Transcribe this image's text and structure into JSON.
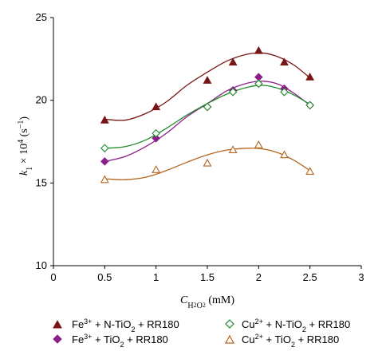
{
  "chart_data": {
    "type": "scatter",
    "xlabel": "C_H2O2 (mM)",
    "ylabel": "k1 × 10^4 (s^-1)",
    "xlim": [
      0,
      3
    ],
    "ylim": [
      10,
      25
    ],
    "x_ticks": [
      "0",
      "0.5",
      "1",
      "1.5",
      "2",
      "2.5",
      "3"
    ],
    "y_ticks": [
      "10",
      "15",
      "20",
      "25"
    ],
    "grid": false,
    "legend_position": "bottom",
    "series": [
      {
        "name": "Fe3+ + N-TiO2 + RR180",
        "marker": "filled-triangle",
        "color": "#7a1515",
        "x": [
          0.5,
          1.0,
          1.5,
          1.75,
          2.0,
          2.25,
          2.5
        ],
        "y": [
          18.8,
          19.6,
          21.2,
          22.3,
          23.0,
          22.3,
          21.4
        ],
        "fit_x": [
          0.5,
          0.7,
          0.9,
          1.1,
          1.3,
          1.5,
          1.7,
          1.9,
          2.05,
          2.2,
          2.35,
          2.5
        ],
        "fit_y": [
          18.85,
          18.8,
          19.2,
          19.9,
          20.9,
          21.7,
          22.4,
          22.8,
          22.85,
          22.6,
          22.1,
          21.35
        ]
      },
      {
        "name": "Fe3+ + TiO2 + RR180",
        "marker": "filled-diamond",
        "color": "#8b1e8b",
        "x": [
          0.5,
          1.0,
          1.5,
          1.75,
          2.0,
          2.25,
          2.5
        ],
        "y": [
          16.3,
          17.7,
          19.6,
          20.6,
          21.4,
          20.7,
          19.7
        ],
        "fit_x": [
          0.5,
          0.7,
          0.9,
          1.1,
          1.3,
          1.5,
          1.7,
          1.9,
          2.05,
          2.2,
          2.35,
          2.5
        ],
        "fit_y": [
          16.3,
          16.6,
          17.2,
          18.0,
          19.0,
          19.8,
          20.6,
          21.05,
          21.15,
          20.95,
          20.4,
          19.7
        ]
      },
      {
        "name": "Cu2+ + N-TiO2 + RR180",
        "marker": "open-diamond",
        "color": "#1e8b2a",
        "x": [
          0.5,
          1.0,
          1.5,
          1.75,
          2.0,
          2.25,
          2.5
        ],
        "y": [
          17.1,
          18.0,
          19.6,
          20.5,
          21.0,
          20.5,
          19.7
        ],
        "fit_x": [
          0.5,
          0.7,
          0.9,
          1.1,
          1.3,
          1.5,
          1.7,
          1.9,
          2.05,
          2.2,
          2.35,
          2.5
        ],
        "fit_y": [
          17.1,
          17.2,
          17.6,
          18.3,
          19.1,
          19.8,
          20.4,
          20.8,
          20.9,
          20.7,
          20.3,
          19.75
        ]
      },
      {
        "name": "Cu2+ + TiO2 + RR180",
        "marker": "open-triangle",
        "color": "#b5651d",
        "x": [
          0.5,
          1.0,
          1.5,
          1.75,
          2.0,
          2.25,
          2.5
        ],
        "y": [
          15.2,
          15.8,
          16.2,
          17.0,
          17.3,
          16.7,
          15.7
        ],
        "fit_x": [
          0.5,
          0.7,
          0.9,
          1.1,
          1.3,
          1.5,
          1.7,
          1.9,
          2.05,
          2.2,
          2.35,
          2.5
        ],
        "fit_y": [
          15.25,
          15.2,
          15.35,
          15.75,
          16.25,
          16.7,
          17.0,
          17.1,
          17.05,
          16.8,
          16.35,
          15.75
        ]
      }
    ]
  },
  "legend": [
    {
      "prefix": "Fe",
      "prefix_sup": "3+",
      "middle": " + N-TiO",
      "middle_sub": "2",
      "suffix": " + RR180"
    },
    {
      "prefix": "Cu",
      "prefix_sup": "2+",
      "middle": " + N-TiO",
      "middle_sub": "2",
      "suffix": " + RR180"
    },
    {
      "prefix": "Fe",
      "prefix_sup": "3+",
      "middle": " + TiO",
      "middle_sub": "2",
      "suffix": " + RR180"
    },
    {
      "prefix": "Cu",
      "prefix_sup": "2+",
      "middle": " + TiO",
      "middle_sub": "2",
      "suffix": " + RR180"
    }
  ],
  "axis_title_parts": {
    "x_main": "C",
    "x_sub": "H",
    "x_sub2": "2",
    "x_sub3": "O",
    "x_sub4": "2",
    "x_unit": " (mM)",
    "y_k": "k",
    "y_k_sub": "1",
    "y_times": " × 10",
    "y_exp": "4",
    "y_unit": " (s",
    "y_unit_sup": "−1",
    "y_close": ")"
  }
}
